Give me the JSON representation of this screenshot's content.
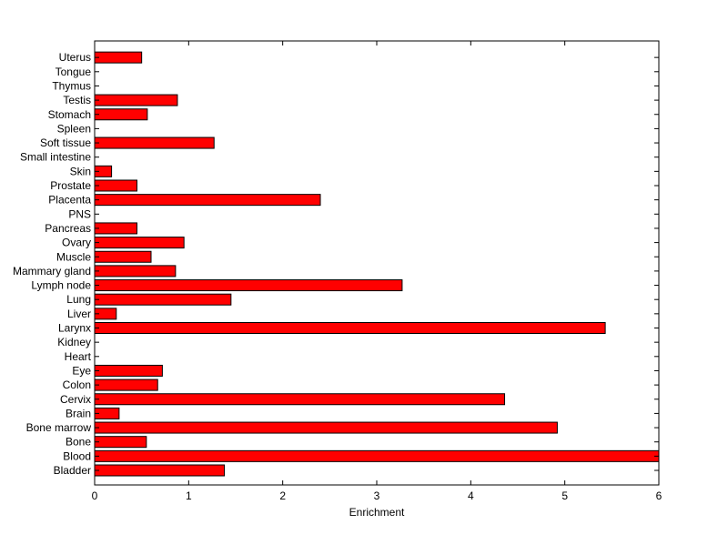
{
  "chart_data": {
    "type": "bar",
    "orientation": "horizontal",
    "categories": [
      "Bladder",
      "Blood",
      "Bone",
      "Bone marrow",
      "Brain",
      "Cervix",
      "Colon",
      "Eye",
      "Heart",
      "Kidney",
      "Larynx",
      "Liver",
      "Lung",
      "Lymph node",
      "Mammary gland",
      "Muscle",
      "Ovary",
      "Pancreas",
      "PNS",
      "Placenta",
      "Prostate",
      "Skin",
      "Small intestine",
      "Soft tissue",
      "Spleen",
      "Stomach",
      "Testis",
      "Thymus",
      "Tongue",
      "Uterus"
    ],
    "values": [
      1.38,
      6.0,
      0.55,
      4.92,
      0.26,
      4.36,
      0.67,
      0.72,
      0,
      0,
      5.43,
      0.23,
      1.45,
      3.27,
      0.86,
      0.6,
      0.95,
      0.45,
      0,
      2.4,
      0.45,
      0.18,
      0,
      1.27,
      0,
      0.56,
      0.88,
      0,
      0,
      0.5
    ],
    "title": "",
    "xlabel": "Enrichment",
    "ylabel": "",
    "xlim": [
      0,
      6
    ],
    "xticks": [
      0,
      1,
      2,
      3,
      4,
      5,
      6
    ],
    "grid": false,
    "bar_color": "#ff0000",
    "bar_edge_color": "#000000"
  }
}
